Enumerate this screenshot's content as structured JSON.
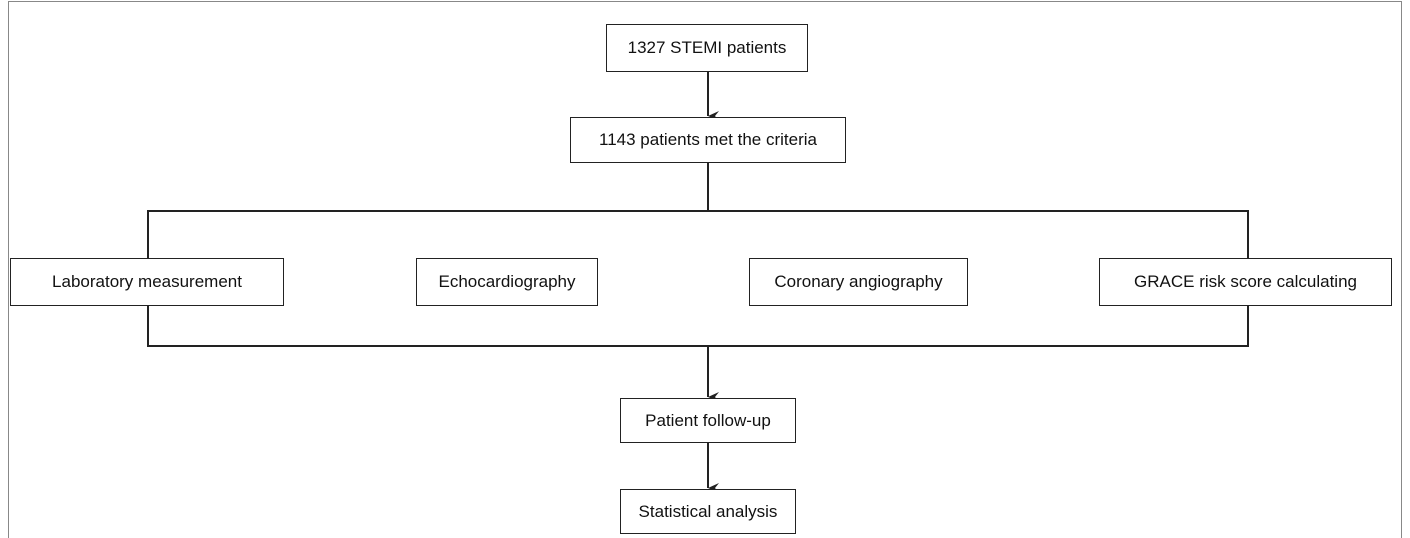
{
  "nodes": [
    {
      "label": "1327 STEMI patients"
    },
    {
      "label": "1143 patients met the criteria"
    },
    {
      "label": "Laboratory measurement"
    },
    {
      "label": "Echocardiography"
    },
    {
      "label": "Coronary angiography"
    },
    {
      "label": "GRACE risk score calculating"
    },
    {
      "label": "Patient follow-up"
    },
    {
      "label": "Statistical analysis"
    }
  ]
}
